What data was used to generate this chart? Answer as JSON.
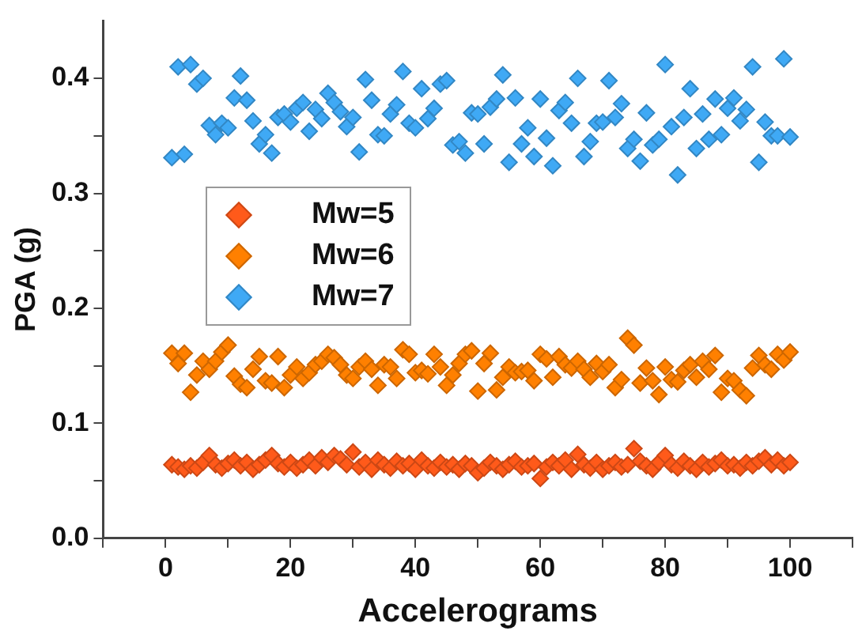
{
  "chart_data": {
    "type": "scatter",
    "xlabel": "Accelerograms",
    "ylabel": "PGA (g)",
    "x": [
      1,
      2,
      3,
      4,
      5,
      6,
      7,
      8,
      9,
      10,
      11,
      12,
      13,
      14,
      15,
      16,
      17,
      18,
      19,
      20,
      21,
      22,
      23,
      24,
      25,
      26,
      27,
      28,
      29,
      30,
      31,
      32,
      33,
      34,
      35,
      36,
      37,
      38,
      39,
      40,
      41,
      42,
      43,
      44,
      45,
      46,
      47,
      48,
      49,
      50,
      51,
      52,
      53,
      54,
      55,
      56,
      57,
      58,
      59,
      60,
      61,
      62,
      63,
      64,
      65,
      66,
      67,
      68,
      69,
      70,
      71,
      72,
      73,
      74,
      75,
      76,
      77,
      78,
      79,
      80,
      81,
      82,
      83,
      84,
      85,
      86,
      87,
      88,
      89,
      90,
      91,
      92,
      93,
      94,
      95,
      96,
      97,
      98,
      99,
      100
    ],
    "series": [
      {
        "name": "Mw=5",
        "color": "#ff5a1a",
        "values": [
          0.064,
          0.062,
          0.06,
          0.063,
          0.061,
          0.066,
          0.072,
          0.064,
          0.061,
          0.065,
          0.068,
          0.063,
          0.066,
          0.06,
          0.064,
          0.068,
          0.072,
          0.065,
          0.062,
          0.066,
          0.061,
          0.064,
          0.068,
          0.063,
          0.07,
          0.066,
          0.072,
          0.069,
          0.064,
          0.075,
          0.062,
          0.066,
          0.06,
          0.068,
          0.064,
          0.061,
          0.067,
          0.063,
          0.065,
          0.06,
          0.068,
          0.063,
          0.061,
          0.066,
          0.062,
          0.064,
          0.06,
          0.065,
          0.063,
          0.057,
          0.061,
          0.066,
          0.063,
          0.06,
          0.064,
          0.067,
          0.062,
          0.063,
          0.065,
          0.052,
          0.062,
          0.066,
          0.063,
          0.068,
          0.06,
          0.073,
          0.064,
          0.061,
          0.066,
          0.06,
          0.063,
          0.066,
          0.062,
          0.064,
          0.078,
          0.067,
          0.063,
          0.06,
          0.066,
          0.072,
          0.064,
          0.061,
          0.067,
          0.063,
          0.06,
          0.066,
          0.062,
          0.065,
          0.068,
          0.063,
          0.064,
          0.061,
          0.066,
          0.063,
          0.067,
          0.07,
          0.064,
          0.068,
          0.063,
          0.066
        ]
      },
      {
        "name": "Mw=6",
        "color": "#ff8000",
        "values": [
          0.161,
          0.152,
          0.161,
          0.127,
          0.142,
          0.154,
          0.147,
          0.154,
          0.162,
          0.168,
          0.141,
          0.134,
          0.131,
          0.147,
          0.158,
          0.137,
          0.135,
          0.158,
          0.131,
          0.142,
          0.149,
          0.139,
          0.144,
          0.151,
          0.154,
          0.16,
          0.157,
          0.151,
          0.142,
          0.139,
          0.149,
          0.154,
          0.147,
          0.133,
          0.151,
          0.149,
          0.139,
          0.164,
          0.16,
          0.144,
          0.146,
          0.143,
          0.16,
          0.149,
          0.133,
          0.142,
          0.152,
          0.16,
          0.163,
          0.128,
          0.152,
          0.161,
          0.129,
          0.14,
          0.149,
          0.144,
          0.145,
          0.146,
          0.137,
          0.16,
          0.156,
          0.14,
          0.158,
          0.151,
          0.148,
          0.154,
          0.147,
          0.14,
          0.152,
          0.145,
          0.151,
          0.131,
          0.138,
          0.174,
          0.168,
          0.135,
          0.148,
          0.137,
          0.125,
          0.149,
          0.138,
          0.136,
          0.146,
          0.151,
          0.14,
          0.154,
          0.147,
          0.159,
          0.127,
          0.139,
          0.137,
          0.129,
          0.124,
          0.148,
          0.159,
          0.151,
          0.147,
          0.16,
          0.155,
          0.162
        ]
      },
      {
        "name": "Mw=7",
        "color": "#3fa9f5",
        "values": [
          0.331,
          0.41,
          0.334,
          0.412,
          0.395,
          0.4,
          0.359,
          0.351,
          0.361,
          0.357,
          0.383,
          0.402,
          0.381,
          0.363,
          0.343,
          0.351,
          0.335,
          0.366,
          0.369,
          0.362,
          0.374,
          0.379,
          0.354,
          0.373,
          0.365,
          0.387,
          0.379,
          0.371,
          0.358,
          0.366,
          0.336,
          0.399,
          0.381,
          0.351,
          0.35,
          0.369,
          0.377,
          0.406,
          0.361,
          0.357,
          0.391,
          0.365,
          0.374,
          0.395,
          0.398,
          0.342,
          0.345,
          0.335,
          0.37,
          0.369,
          0.343,
          0.375,
          0.382,
          0.403,
          0.327,
          0.383,
          0.343,
          0.357,
          0.332,
          0.382,
          0.348,
          0.324,
          0.372,
          0.379,
          0.361,
          0.4,
          0.332,
          0.345,
          0.361,
          0.362,
          0.398,
          0.366,
          0.378,
          0.339,
          0.347,
          0.328,
          0.37,
          0.342,
          0.347,
          0.412,
          0.358,
          0.316,
          0.366,
          0.391,
          0.339,
          0.369,
          0.347,
          0.382,
          0.351,
          0.374,
          0.383,
          0.363,
          0.373,
          0.41,
          0.327,
          0.362,
          0.35,
          0.35,
          0.417,
          0.349
        ]
      }
    ],
    "xlim": [
      -10,
      110
    ],
    "xticks": [
      {
        "value": -10,
        "label": null
      },
      0,
      {
        "value": 10,
        "label": null
      },
      20,
      {
        "value": 30,
        "label": null
      },
      40,
      {
        "value": 50,
        "label": null
      },
      60,
      {
        "value": 70,
        "label": null
      },
      80,
      {
        "value": 90,
        "label": null
      },
      100,
      {
        "value": 110,
        "label": null
      }
    ],
    "ylim": [
      0,
      0.45
    ],
    "yticks": [
      {
        "value": 0,
        "label": "0.0"
      },
      {
        "value": 0.05,
        "label": null
      },
      0.1,
      {
        "value": 0.15,
        "label": null
      },
      0.2,
      {
        "value": 0.25,
        "label": null
      },
      0.3,
      {
        "value": 0.35,
        "label": null
      },
      0.4
    ],
    "marker": "diamond",
    "grid": false,
    "legend": "left"
  }
}
